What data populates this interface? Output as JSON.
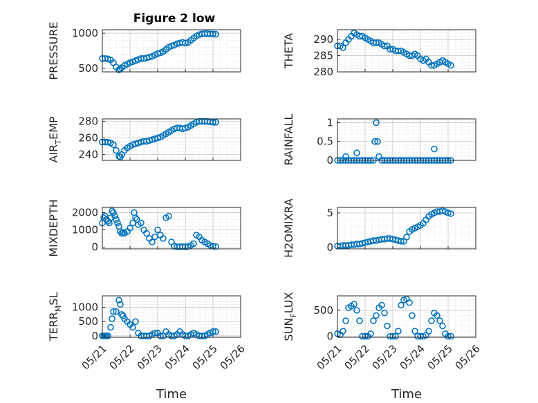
{
  "figure": {
    "title": "Figure 2 low",
    "marker_color": "#0072BD"
  },
  "chart_data": [
    {
      "id": "pressure",
      "type": "scatter",
      "title": "Figure 2 low",
      "ylabel": "PRESSURE",
      "ylim": [
        450,
        1050
      ],
      "yticks": [
        500,
        1000
      ],
      "xticks": [],
      "x": [
        0,
        0.1,
        0.2,
        0.3,
        0.4,
        0.5,
        0.6,
        0.65,
        0.7,
        0.8,
        0.9,
        1.0,
        1.1,
        1.2,
        1.3,
        1.4,
        1.5,
        1.6,
        1.7,
        1.8,
        1.9,
        2.0,
        2.1,
        2.2,
        2.3,
        2.4,
        2.5,
        2.6,
        2.7,
        2.8,
        2.9,
        3.0,
        3.1,
        3.2,
        3.3,
        3.4,
        3.5,
        3.6,
        3.7,
        3.8,
        3.9,
        4.0,
        4.1
      ],
      "y": [
        640,
        640,
        635,
        620,
        580,
        520,
        480,
        490,
        510,
        540,
        560,
        580,
        595,
        610,
        625,
        640,
        640,
        650,
        660,
        670,
        690,
        710,
        720,
        740,
        770,
        800,
        820,
        830,
        850,
        860,
        870,
        860,
        870,
        900,
        930,
        960,
        980,
        990,
        995,
        995,
        990,
        990,
        985
      ]
    },
    {
      "id": "theta",
      "type": "scatter",
      "ylabel": "THETA",
      "ylim": [
        280,
        293
      ],
      "yticks": [
        280,
        285,
        290
      ],
      "xticks": [],
      "x": [
        0,
        0.1,
        0.2,
        0.3,
        0.4,
        0.5,
        0.6,
        0.7,
        0.8,
        0.9,
        1.0,
        1.1,
        1.2,
        1.3,
        1.4,
        1.5,
        1.6,
        1.7,
        1.8,
        1.9,
        2.0,
        2.1,
        2.2,
        2.3,
        2.4,
        2.5,
        2.6,
        2.7,
        2.8,
        2.9,
        3.0,
        3.1,
        3.2,
        3.3,
        3.4,
        3.5,
        3.6,
        3.7,
        3.8,
        3.9,
        4.0,
        4.1
      ],
      "y": [
        288,
        288,
        287.5,
        289,
        290,
        291,
        292,
        291.5,
        291,
        291,
        290.5,
        290,
        289.5,
        289,
        289,
        289,
        288.5,
        288,
        288,
        287,
        287,
        286.5,
        286.5,
        286.5,
        286,
        285.5,
        285,
        285,
        285.5,
        285,
        284,
        283.5,
        284,
        283,
        282,
        282,
        282.5,
        283,
        283.5,
        283,
        282.5,
        282
      ]
    },
    {
      "id": "air_temp",
      "type": "scatter",
      "ylabel": "AIR_TEMP",
      "ylim": [
        233,
        283
      ],
      "yticks": [
        240,
        260,
        280
      ],
      "xticks": [],
      "x": [
        0,
        0.1,
        0.2,
        0.3,
        0.4,
        0.5,
        0.6,
        0.65,
        0.7,
        0.8,
        0.9,
        1.0,
        1.1,
        1.2,
        1.3,
        1.4,
        1.5,
        1.6,
        1.7,
        1.8,
        1.9,
        2.0,
        2.1,
        2.2,
        2.3,
        2.4,
        2.5,
        2.6,
        2.7,
        2.8,
        2.9,
        3.0,
        3.1,
        3.2,
        3.3,
        3.4,
        3.5,
        3.6,
        3.7,
        3.8,
        3.9,
        4.0,
        4.1
      ],
      "y": [
        255,
        255,
        255,
        254,
        252,
        245,
        238,
        237,
        240,
        245,
        248,
        250,
        252,
        253,
        254,
        255,
        256,
        256,
        257,
        258,
        259,
        260,
        261,
        263,
        265,
        267,
        269,
        271,
        272,
        272,
        271,
        272,
        273,
        275,
        277,
        279,
        280,
        280,
        280,
        280,
        279.5,
        279,
        279
      ]
    },
    {
      "id": "rainfall",
      "type": "scatter",
      "ylabel": "RAINFALL",
      "ylim": [
        0,
        1.1
      ],
      "yticks": [
        0,
        0.5,
        1
      ],
      "xticks": [],
      "x": [
        0,
        0.1,
        0.2,
        0.3,
        0.4,
        0.5,
        0.6,
        0.7,
        0.8,
        0.9,
        1.0,
        1.1,
        1.2,
        1.3,
        1.35,
        1.4,
        1.45,
        1.5,
        1.6,
        1.7,
        1.8,
        1.9,
        2.0,
        2.1,
        2.2,
        2.3,
        2.4,
        2.5,
        2.6,
        2.7,
        2.8,
        2.9,
        3.0,
        3.1,
        3.2,
        3.3,
        3.4,
        3.5,
        3.6,
        3.7,
        3.8,
        3.9,
        4.0,
        4.1,
        0.3,
        0.7,
        3.5
      ],
      "y": [
        0,
        0,
        0,
        0,
        0,
        0,
        0,
        0,
        0,
        0,
        0,
        0,
        0,
        0,
        0.5,
        1,
        0.5,
        0.1,
        0,
        0,
        0,
        0,
        0,
        0,
        0,
        0,
        0,
        0,
        0,
        0,
        0,
        0,
        0,
        0,
        0,
        0,
        0,
        0,
        0,
        0,
        0,
        0,
        0,
        0,
        0.1,
        0.2,
        0.3
      ]
    },
    {
      "id": "mixdepth",
      "type": "scatter",
      "ylabel": "MIXDEPTH",
      "ylim": [
        -100,
        2300
      ],
      "yticks": [
        0,
        1000,
        2000
      ],
      "xticks": [],
      "x": [
        0,
        0.05,
        0.1,
        0.15,
        0.2,
        0.25,
        0.3,
        0.35,
        0.4,
        0.45,
        0.5,
        0.55,
        0.6,
        0.65,
        0.7,
        0.75,
        0.8,
        0.9,
        1.0,
        1.1,
        1.15,
        1.2,
        1.25,
        1.3,
        1.4,
        1.5,
        1.6,
        1.7,
        1.8,
        1.9,
        2.0,
        2.1,
        2.2,
        2.3,
        2.4,
        2.5,
        2.6,
        2.7,
        2.8,
        2.9,
        3.0,
        3.1,
        3.2,
        3.3,
        3.4,
        3.5,
        3.6,
        3.7,
        3.8,
        3.9,
        4.0,
        4.1
      ],
      "y": [
        1400,
        1700,
        1800,
        1600,
        1500,
        1400,
        1700,
        2100,
        2000,
        1800,
        1600,
        1400,
        1200,
        900,
        800,
        850,
        800,
        900,
        1100,
        1400,
        2000,
        1700,
        1600,
        1300,
        1400,
        1000,
        800,
        500,
        300,
        600,
        1000,
        700,
        500,
        1700,
        1800,
        300,
        50,
        20,
        20,
        30,
        20,
        30,
        100,
        200,
        700,
        600,
        400,
        300,
        200,
        100,
        50,
        30
      ]
    },
    {
      "id": "h2omixra",
      "type": "scatter",
      "ylabel": "H2OMIXRA",
      "ylim": [
        -0.2,
        5.8
      ],
      "yticks": [
        0,
        5
      ],
      "xticks": [],
      "x": [
        0,
        0.1,
        0.2,
        0.3,
        0.4,
        0.5,
        0.6,
        0.7,
        0.8,
        0.9,
        1.0,
        1.1,
        1.2,
        1.3,
        1.4,
        1.5,
        1.6,
        1.7,
        1.8,
        1.9,
        2.0,
        2.1,
        2.2,
        2.3,
        2.4,
        2.5,
        2.6,
        2.7,
        2.8,
        2.9,
        3.0,
        3.1,
        3.2,
        3.3,
        3.4,
        3.5,
        3.6,
        3.7,
        3.8,
        3.9,
        4.0,
        4.1
      ],
      "y": [
        0.2,
        0.2,
        0.3,
        0.3,
        0.3,
        0.4,
        0.4,
        0.5,
        0.5,
        0.6,
        0.7,
        0.8,
        0.9,
        1.0,
        1.0,
        1.1,
        1.2,
        1.2,
        1.3,
        1.3,
        1.2,
        1.1,
        1.0,
        0.9,
        0.9,
        1.5,
        2.3,
        2.6,
        2.8,
        3.0,
        3.2,
        3.5,
        4.0,
        4.5,
        4.8,
        5.0,
        5.2,
        5.2,
        5.3,
        5.2,
        5.0,
        4.9
      ]
    },
    {
      "id": "terr_msl",
      "type": "scatter",
      "ylabel": "TERR_MSL",
      "ylim": [
        -50,
        1400
      ],
      "yticks": [
        0,
        500,
        1000
      ],
      "xticks": [
        "05/21",
        "05/22",
        "05/23",
        "05/24",
        "05/25",
        "05/26"
      ],
      "xlabel": "Time",
      "x": [
        0,
        0.05,
        0.1,
        0.15,
        0.2,
        0.3,
        0.35,
        0.4,
        0.5,
        0.6,
        0.65,
        0.7,
        0.75,
        0.8,
        0.9,
        1.0,
        1.1,
        1.2,
        1.3,
        1.4,
        1.5,
        1.6,
        1.7,
        1.8,
        1.9,
        2.0,
        2.1,
        2.2,
        2.3,
        2.4,
        2.5,
        2.6,
        2.7,
        2.8,
        2.9,
        3.0,
        3.1,
        3.2,
        3.3,
        3.4,
        3.5,
        3.6,
        3.7,
        3.8,
        3.9,
        4.0,
        4.1
      ],
      "y": [
        0,
        0,
        0,
        0,
        0,
        300,
        600,
        850,
        850,
        1250,
        1100,
        750,
        700,
        600,
        500,
        400,
        300,
        500,
        100,
        0,
        0,
        0,
        0,
        50,
        100,
        100,
        0,
        0,
        150,
        50,
        0,
        0,
        50,
        150,
        50,
        0,
        0,
        50,
        100,
        50,
        0,
        0,
        0,
        50,
        100,
        150,
        150
      ]
    },
    {
      "id": "sun_flux",
      "type": "scatter",
      "ylabel": "SUN_FLUX",
      "ylim": [
        -20,
        780
      ],
      "yticks": [
        0,
        500
      ],
      "xticks": [
        "05/21",
        "05/22",
        "05/23",
        "05/24",
        "05/25",
        "05/26"
      ],
      "xlabel": "Time",
      "x": [
        0,
        0.1,
        0.2,
        0.3,
        0.4,
        0.5,
        0.6,
        0.7,
        0.8,
        0.9,
        1.0,
        1.1,
        1.2,
        1.3,
        1.4,
        1.5,
        1.6,
        1.7,
        1.8,
        1.9,
        2.0,
        2.1,
        2.2,
        2.3,
        2.4,
        2.5,
        2.6,
        2.7,
        2.8,
        2.9,
        3.0,
        3.1,
        3.2,
        3.3,
        3.4,
        3.5,
        3.6,
        3.7,
        3.8,
        3.9,
        4.0,
        4.1
      ],
      "y": [
        50,
        30,
        100,
        300,
        550,
        580,
        620,
        500,
        300,
        0,
        0,
        0,
        50,
        300,
        400,
        550,
        600,
        450,
        200,
        0,
        0,
        0,
        100,
        600,
        700,
        720,
        650,
        400,
        100,
        0,
        0,
        0,
        20,
        100,
        300,
        450,
        400,
        300,
        200,
        50,
        0,
        0
      ]
    }
  ]
}
